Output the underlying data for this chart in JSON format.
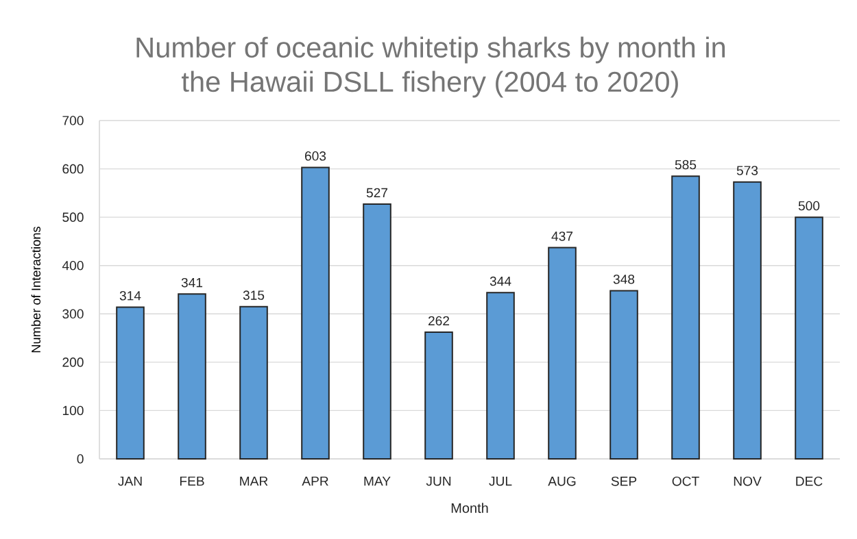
{
  "chart_data": {
    "type": "bar",
    "title": "Number of oceanic whitetip sharks by month in the Hawaii DSLL fishery (2004 to 2020)",
    "xlabel": "Month",
    "ylabel": "Number of Interactions",
    "categories": [
      "JAN",
      "FEB",
      "MAR",
      "APR",
      "MAY",
      "JUN",
      "JUL",
      "AUG",
      "SEP",
      "OCT",
      "NOV",
      "DEC"
    ],
    "values": [
      314,
      341,
      315,
      603,
      527,
      262,
      344,
      437,
      348,
      585,
      573,
      500
    ],
    "color": "#5b9bd5",
    "ylim": [
      0,
      700
    ],
    "yticks": [
      0,
      100,
      200,
      300,
      400,
      500,
      600,
      700
    ],
    "grid": "y",
    "data_labels": true
  }
}
